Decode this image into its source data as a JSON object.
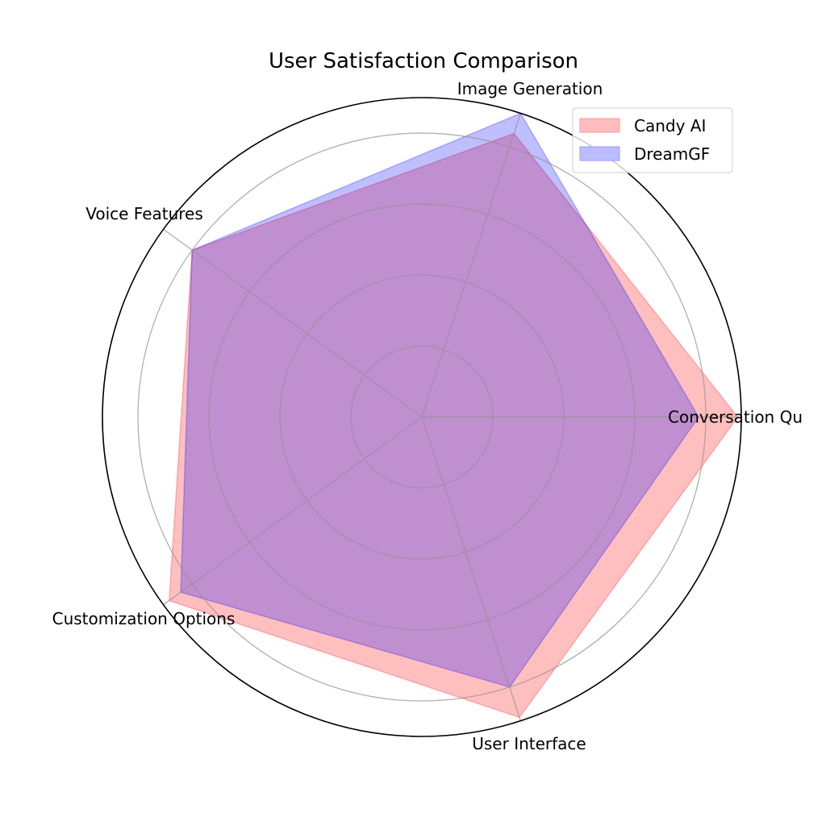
{
  "chart_data": {
    "type": "radar",
    "title": "User Satisfaction Comparison",
    "categories": [
      "Conversation Quality",
      "Image Generation",
      "Voice Features",
      "Customization Options",
      "User Interface"
    ],
    "visible_category_labels": [
      "Conversation Qu",
      "Image Generation",
      "Voice Features",
      "Customization Options",
      "User Interface"
    ],
    "series": [
      {
        "name": "Candy AI",
        "values": [
          8.9,
          8.4,
          8.0,
          8.8,
          8.9
        ],
        "color": "#ff0000",
        "fill": "#ffbcbc"
      },
      {
        "name": "DreamGF",
        "values": [
          7.8,
          9.0,
          8.0,
          8.4,
          8.0
        ],
        "color": "#0000ff",
        "fill": "#bcbcff"
      }
    ],
    "rlim": [
      0,
      9.0
    ],
    "rgrid": [
      2,
      4,
      6,
      8
    ],
    "radial_tick_labels_visible": false,
    "grid": true,
    "legend_position": "upper right"
  },
  "legend": {
    "items": [
      {
        "label": "Candy AI",
        "color": "#ffbcbc",
        "edge": "#ff9a9a"
      },
      {
        "label": "DreamGF",
        "color": "#bcbcff",
        "edge": "#9a9aff"
      }
    ]
  }
}
